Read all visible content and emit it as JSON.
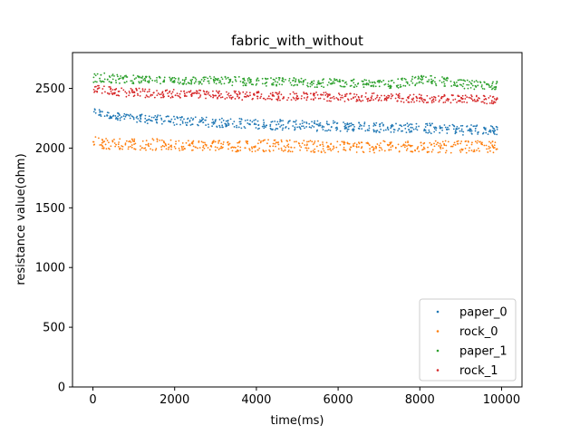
{
  "chart_data": {
    "type": "scatter",
    "title": "fabric_with_without",
    "xlabel": "time(ms)",
    "ylabel": "resistance value(ohm)",
    "xlim": [
      -500,
      10500
    ],
    "ylim": [
      0,
      2800
    ],
    "xticks": [
      0,
      2000,
      4000,
      6000,
      8000,
      10000
    ],
    "yticks": [
      0,
      500,
      1000,
      1500,
      2000,
      2500
    ],
    "grid": false,
    "legend_position": "lower-right",
    "series": [
      {
        "name": "paper_0",
        "color": "#1f77b4",
        "x": [
          0,
          250,
          500,
          750,
          1000,
          1250,
          1500,
          1750,
          2000,
          2250,
          2500,
          2750,
          3000,
          3250,
          3500,
          3750,
          4000,
          4250,
          4500,
          4750,
          5000,
          5250,
          5500,
          5750,
          6000,
          6250,
          6500,
          6750,
          7000,
          7250,
          7500,
          7750,
          8000,
          8250,
          8500,
          8750,
          9000,
          9250,
          9500,
          9750,
          9900
        ],
        "low": [
          2280,
          2250,
          2240,
          2230,
          2220,
          2210,
          2200,
          2200,
          2190,
          2190,
          2180,
          2180,
          2170,
          2170,
          2170,
          2160,
          2160,
          2160,
          2150,
          2150,
          2150,
          2150,
          2140,
          2140,
          2140,
          2140,
          2140,
          2140,
          2130,
          2130,
          2130,
          2130,
          2130,
          2120,
          2120,
          2120,
          2110,
          2110,
          2110,
          2110,
          2110
        ],
        "high": [
          2340,
          2310,
          2300,
          2290,
          2290,
          2280,
          2280,
          2270,
          2270,
          2260,
          2260,
          2260,
          2250,
          2250,
          2250,
          2250,
          2240,
          2240,
          2240,
          2240,
          2230,
          2230,
          2230,
          2230,
          2230,
          2220,
          2220,
          2220,
          2220,
          2220,
          2210,
          2210,
          2210,
          2210,
          2200,
          2200,
          2200,
          2200,
          2190,
          2190,
          2190
        ]
      },
      {
        "name": "rock_0",
        "color": "#ff7f0e",
        "x": [
          0,
          250,
          500,
          750,
          1000,
          1250,
          1500,
          1750,
          2000,
          2250,
          2500,
          2750,
          3000,
          3250,
          3500,
          3750,
          4000,
          4250,
          4500,
          4750,
          5000,
          5250,
          5500,
          5750,
          6000,
          6250,
          6500,
          6750,
          7000,
          7250,
          7500,
          7750,
          8000,
          8250,
          8500,
          8750,
          9000,
          9250,
          9500,
          9750,
          9900
        ],
        "low": [
          2000,
          1990,
          1990,
          1990,
          1990,
          1980,
          1980,
          1980,
          1980,
          1980,
          1980,
          1980,
          1980,
          1970,
          1970,
          1970,
          1970,
          1970,
          1970,
          1970,
          1970,
          1970,
          1960,
          1960,
          1960,
          1960,
          1960,
          1960,
          1960,
          1960,
          1960,
          1960,
          1960,
          1960,
          1960,
          1960,
          1960,
          1960,
          1960,
          1960,
          1960
        ],
        "high": [
          2100,
          2090,
          2080,
          2080,
          2080,
          2080,
          2080,
          2070,
          2070,
          2070,
          2070,
          2070,
          2070,
          2070,
          2070,
          2070,
          2070,
          2070,
          2070,
          2070,
          2070,
          2070,
          2060,
          2060,
          2060,
          2060,
          2060,
          2060,
          2060,
          2060,
          2060,
          2060,
          2060,
          2060,
          2060,
          2060,
          2060,
          2060,
          2060,
          2060,
          2060
        ]
      },
      {
        "name": "paper_1",
        "color": "#2ca02c",
        "x": [
          0,
          250,
          500,
          750,
          1000,
          1250,
          1500,
          1750,
          2000,
          2250,
          2500,
          2750,
          3000,
          3250,
          3500,
          3750,
          4000,
          4250,
          4500,
          4750,
          5000,
          5250,
          5500,
          5750,
          6000,
          6250,
          6500,
          6750,
          7000,
          7250,
          7500,
          7750,
          8000,
          8250,
          8500,
          8750,
          9000,
          9250,
          9500,
          9750,
          9900
        ],
        "low": [
          2550,
          2550,
          2540,
          2540,
          2540,
          2540,
          2540,
          2540,
          2530,
          2530,
          2530,
          2530,
          2530,
          2530,
          2520,
          2520,
          2520,
          2520,
          2520,
          2520,
          2520,
          2510,
          2510,
          2510,
          2510,
          2510,
          2510,
          2510,
          2510,
          2500,
          2500,
          2510,
          2530,
          2530,
          2520,
          2510,
          2500,
          2490,
          2490,
          2490,
          2490
        ],
        "high": [
          2640,
          2630,
          2620,
          2610,
          2610,
          2600,
          2600,
          2600,
          2600,
          2600,
          2600,
          2600,
          2600,
          2600,
          2600,
          2600,
          2590,
          2590,
          2590,
          2590,
          2590,
          2590,
          2580,
          2580,
          2580,
          2580,
          2580,
          2570,
          2570,
          2570,
          2580,
          2600,
          2610,
          2610,
          2600,
          2590,
          2580,
          2570,
          2560,
          2560,
          2560
        ]
      },
      {
        "name": "rock_1",
        "color": "#d62728",
        "x": [
          0,
          250,
          500,
          750,
          1000,
          1250,
          1500,
          1750,
          2000,
          2250,
          2500,
          2750,
          3000,
          3250,
          3500,
          3750,
          4000,
          4250,
          4500,
          4750,
          5000,
          5250,
          5500,
          5750,
          6000,
          6250,
          6500,
          6750,
          7000,
          7250,
          7500,
          7750,
          8000,
          8250,
          8500,
          8750,
          9000,
          9250,
          9500,
          9750,
          9900
        ],
        "low": [
          2460,
          2450,
          2440,
          2430,
          2430,
          2420,
          2420,
          2420,
          2420,
          2420,
          2410,
          2410,
          2410,
          2410,
          2410,
          2400,
          2400,
          2400,
          2400,
          2400,
          2400,
          2400,
          2400,
          2390,
          2390,
          2390,
          2390,
          2390,
          2390,
          2390,
          2380,
          2380,
          2380,
          2380,
          2380,
          2380,
          2380,
          2380,
          2370,
          2370,
          2370
        ],
        "high": [
          2530,
          2520,
          2510,
          2500,
          2500,
          2500,
          2490,
          2490,
          2490,
          2490,
          2490,
          2480,
          2480,
          2480,
          2480,
          2480,
          2480,
          2470,
          2470,
          2470,
          2470,
          2470,
          2470,
          2470,
          2460,
          2460,
          2460,
          2460,
          2460,
          2460,
          2460,
          2450,
          2450,
          2450,
          2450,
          2450,
          2450,
          2450,
          2440,
          2440,
          2440
        ]
      }
    ]
  }
}
